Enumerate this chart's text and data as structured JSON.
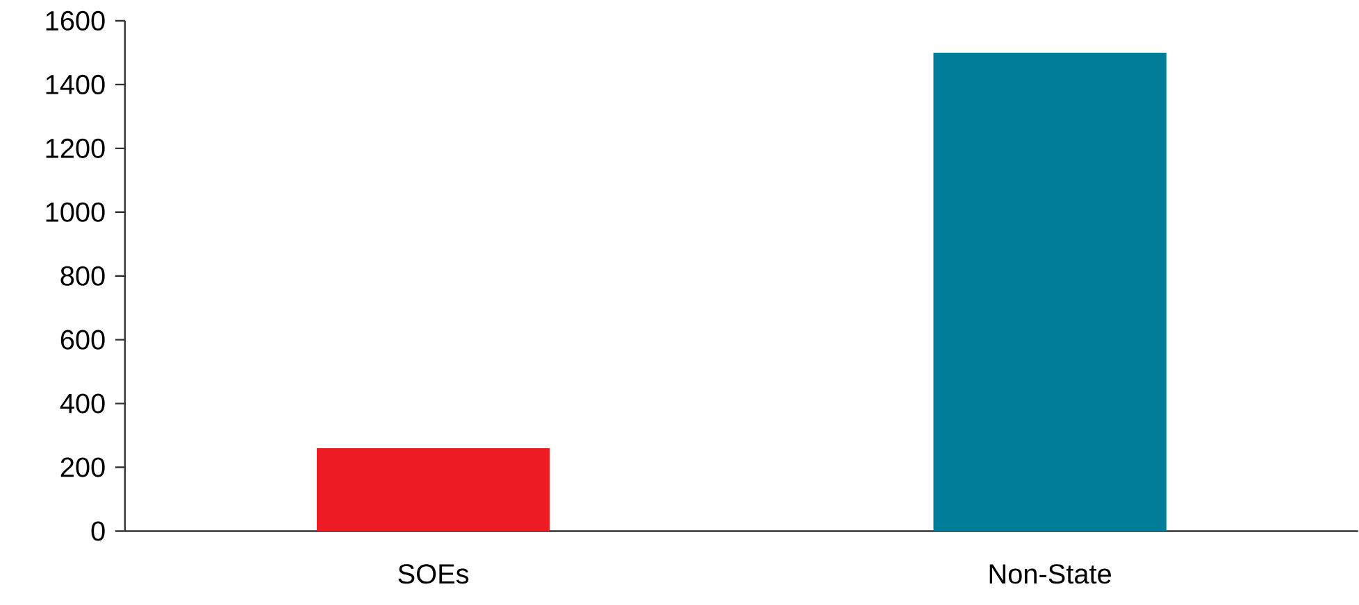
{
  "chart_data": {
    "type": "bar",
    "categories": [
      "SOEs",
      "Non-State"
    ],
    "values": [
      260,
      1500
    ],
    "colors": [
      "#ed1c24",
      "#007e99"
    ],
    "ylim": [
      0,
      1600
    ],
    "yticks": [
      0,
      200,
      400,
      600,
      800,
      1000,
      1200,
      1400,
      1600
    ],
    "grid": false
  }
}
